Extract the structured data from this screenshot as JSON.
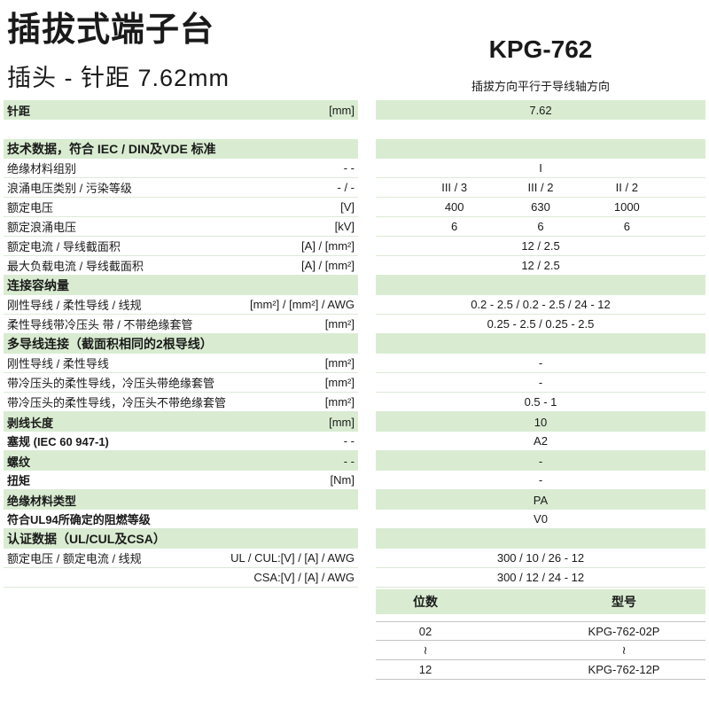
{
  "page": {
    "title": "插拔式端子台",
    "subtitle": "插头 - 针距  7.62mm",
    "model": "KPG-762",
    "model_note": "插拔方向平行于导线轴方向"
  },
  "colors": {
    "section_green": "#d9ecd1",
    "row_separator": "#dcead6",
    "order_table_line": "#c4c4c4"
  },
  "spec_table": {
    "rows": [
      {
        "type": "data",
        "bg": "green",
        "bold": true,
        "label": "针距",
        "unit": "[mm]",
        "value": "7.62"
      },
      {
        "type": "spacer"
      },
      {
        "type": "section",
        "label": "技术数据，符合 IEC / DIN及VDE 标准"
      },
      {
        "type": "data",
        "label": "绝缘材料组别",
        "unit": "- -",
        "value": "I"
      },
      {
        "type": "data",
        "label": "浪涌电压类别 / 污染等级",
        "unit": "- / -",
        "values": [
          "III / 3",
          "III / 2",
          "II / 2"
        ]
      },
      {
        "type": "data",
        "label": "额定电压",
        "unit": "[V]",
        "values": [
          "400",
          "630",
          "1000"
        ]
      },
      {
        "type": "data",
        "label": "额定浪涌电压",
        "unit": "[kV]",
        "values": [
          "6",
          "6",
          "6"
        ]
      },
      {
        "type": "data",
        "label": "额定电流 / 导线截面积",
        "unit": "[A] / [mm²]",
        "value": "12 / 2.5"
      },
      {
        "type": "data",
        "label": "最大负载电流 / 导线截面积",
        "unit": "[A] / [mm²]",
        "value": "12 / 2.5"
      },
      {
        "type": "section",
        "label": "连接容纳量"
      },
      {
        "type": "data",
        "label": "刚性导线 / 柔性导线 / 线规",
        "unit": "[mm²] / [mm²] / AWG",
        "value": "0.2 - 2.5 / 0.2 - 2.5 / 24 - 12"
      },
      {
        "type": "data",
        "label": "柔性导线带冷压头 带 / 不带绝缘套管",
        "unit": "[mm²]",
        "value": "0.25 - 2.5 / 0.25 - 2.5"
      },
      {
        "type": "section",
        "label": "多导线连接（截面积相同的2根导线）"
      },
      {
        "type": "data",
        "label": "刚性导线 / 柔性导线",
        "unit": "[mm²]",
        "value": "-"
      },
      {
        "type": "data",
        "label": "带冷压头的柔性导线，冷压头带绝缘套管",
        "unit": "[mm²]",
        "value": "-"
      },
      {
        "type": "data",
        "label": "带冷压头的柔性导线，冷压头不带绝缘套管",
        "unit": "[mm²]",
        "value": "0.5 - 1"
      },
      {
        "type": "data",
        "bg": "green",
        "bold": true,
        "label": "剥线长度",
        "unit": "[mm]",
        "value": "10"
      },
      {
        "type": "data",
        "bold": true,
        "label": "塞规 (IEC 60 947-1)",
        "unit": "- -",
        "value": "A2"
      },
      {
        "type": "data",
        "bg": "green",
        "bold": true,
        "label": "螺纹",
        "unit": "- -",
        "value": "-"
      },
      {
        "type": "data",
        "bold": true,
        "label": "扭矩",
        "unit": "[Nm]",
        "value": "-"
      },
      {
        "type": "data",
        "bg": "green",
        "bold": true,
        "label": "绝缘材料类型",
        "unit": "",
        "value": "PA"
      },
      {
        "type": "data",
        "bold": true,
        "label": "符合UL94所确定的阻燃等级",
        "unit": "",
        "value": "V0"
      },
      {
        "type": "section",
        "label": "认证数据（UL/CUL及CSA）"
      },
      {
        "type": "data",
        "label": "额定电压 / 额定电流 / 线规",
        "unit": "UL / CUL:[V] / [A] / AWG",
        "value": "300 / 10 / 26 - 12"
      },
      {
        "type": "data",
        "label": "",
        "unit": "CSA:[V] / [A] / AWG",
        "value": "300 / 12 / 24 - 12"
      }
    ]
  },
  "order_table": {
    "headers": [
      "位数",
      "型号"
    ],
    "rows": [
      {
        "positions": "02",
        "model": "KPG-762-02P"
      },
      {
        "positions": "≀",
        "model": "≀"
      },
      {
        "positions": "12",
        "model": "KPG-762-12P"
      }
    ]
  }
}
